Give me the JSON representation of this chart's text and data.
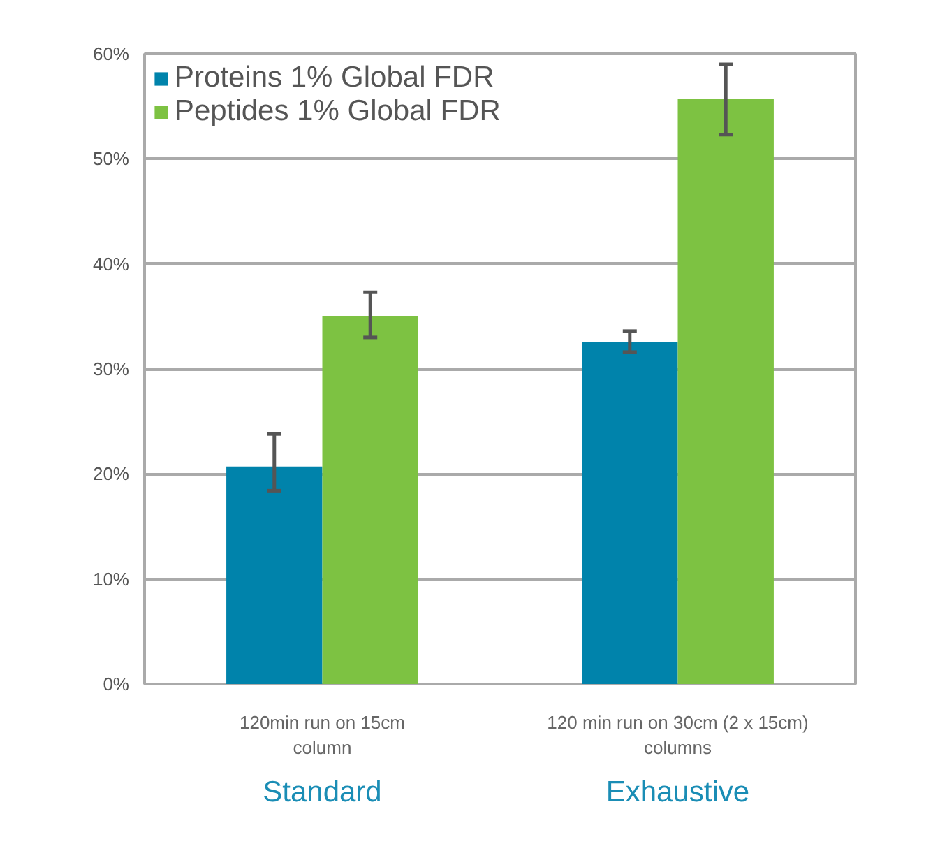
{
  "chart_data": {
    "type": "bar",
    "categories": [
      "Standard",
      "Exhaustive"
    ],
    "series": [
      {
        "name": "Proteins 1% Global FDR",
        "color": "#0083ab",
        "values": [
          20.7,
          32.6
        ],
        "errors": [
          [
            18.4,
            23.8
          ],
          [
            31.6,
            33.6
          ]
        ]
      },
      {
        "name": "Peptides 1% Global FDR",
        "color": "#7dc242",
        "values": [
          35.0,
          55.7
        ],
        "errors": [
          [
            33.0,
            37.3
          ],
          [
            52.3,
            59.0
          ]
        ]
      }
    ],
    "annotations": [
      "120min run on 15cm\ncolumn",
      "120 min run on 30cm (2 x 15cm)\ncolumns"
    ],
    "ylim": [
      0,
      60
    ],
    "yticks": [
      {
        "value": 0,
        "label": "0%"
      },
      {
        "value": 10,
        "label": "10%"
      },
      {
        "value": 20,
        "label": "20%"
      },
      {
        "value": 30,
        "label": "30%"
      },
      {
        "value": 40,
        "label": "40%"
      },
      {
        "value": 50,
        "label": "50%"
      },
      {
        "value": 60,
        "label": "60%"
      }
    ],
    "grid": "y",
    "legend": "top left"
  }
}
